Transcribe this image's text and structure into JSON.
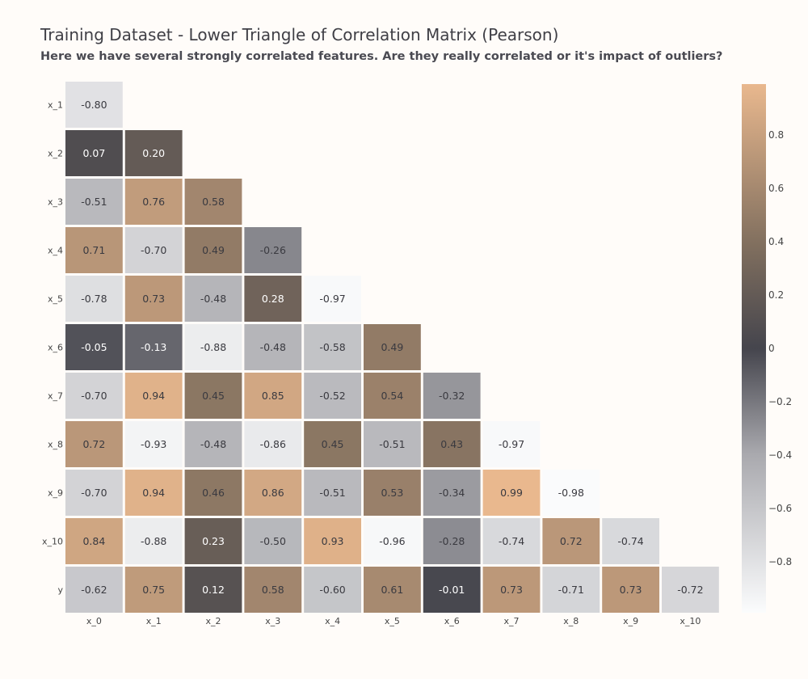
{
  "chart_data": {
    "type": "heatmap",
    "title": "Training Dataset - Lower Triangle of Correlation Matrix (Pearson)",
    "subtitle": "Here we have several strongly correlated features. Are they really correlated or it's impact of outliers?",
    "row_labels": [
      "x_1",
      "x_2",
      "x_3",
      "x_4",
      "x_5",
      "x_6",
      "x_7",
      "x_8",
      "x_9",
      "x_10",
      "y"
    ],
    "col_labels": [
      "x_0",
      "x_1",
      "x_2",
      "x_3",
      "x_4",
      "x_5",
      "x_6",
      "x_7",
      "x_8",
      "x_9",
      "x_10"
    ],
    "values": [
      [
        "-0.80"
      ],
      [
        "0.07",
        "0.20"
      ],
      [
        "-0.51",
        "0.76",
        "0.58"
      ],
      [
        "0.71",
        "-0.70",
        "0.49",
        "-0.26"
      ],
      [
        "-0.78",
        "0.73",
        "-0.48",
        "0.28",
        "-0.97"
      ],
      [
        "-0.05",
        "-0.13",
        "-0.88",
        "-0.48",
        "-0.58",
        "0.49"
      ],
      [
        "-0.70",
        "0.94",
        "0.45",
        "0.85",
        "-0.52",
        "0.54",
        "-0.32"
      ],
      [
        "0.72",
        "-0.93",
        "-0.48",
        "-0.86",
        "0.45",
        "-0.51",
        "0.43",
        "-0.97"
      ],
      [
        "-0.70",
        "0.94",
        "0.46",
        "0.86",
        "-0.51",
        "0.53",
        "-0.34",
        "0.99",
        "-0.98"
      ],
      [
        "0.84",
        "-0.88",
        "0.23",
        "-0.50",
        "0.93",
        "-0.96",
        "-0.28",
        "-0.74",
        "0.72",
        "-0.74"
      ],
      [
        "-0.62",
        "0.75",
        "0.12",
        "0.58",
        "-0.60",
        "0.61",
        "-0.01",
        "0.73",
        "-0.71",
        "0.73",
        "-0.72"
      ]
    ],
    "color_range": [
      -0.99,
      0.99
    ],
    "colorbar": {
      "ticks": [
        "0.8",
        "0.6",
        "0.4",
        "0.2",
        "0",
        "−0.2",
        "−0.4",
        "−0.6",
        "−0.8"
      ],
      "tick_values": [
        0.8,
        0.6,
        0.4,
        0.2,
        0,
        -0.2,
        -0.4,
        -0.6,
        -0.8
      ]
    },
    "colors": {
      "negative_end": "#fbfcfd",
      "center": "#45454d",
      "positive_end": "#e9b88e"
    },
    "legend_placement": "right"
  }
}
